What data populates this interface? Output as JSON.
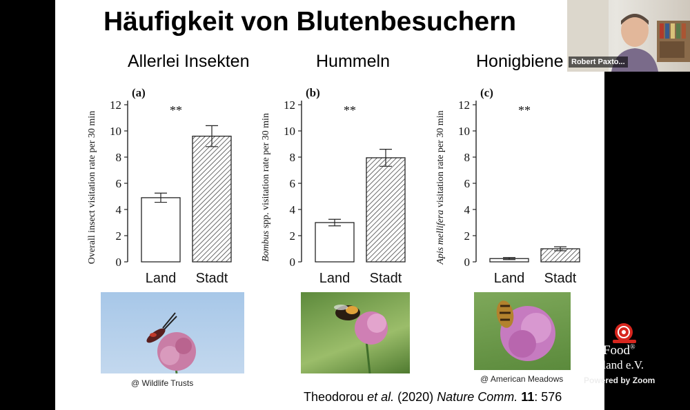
{
  "slide": {
    "title": "Häufigkeit von Blutenbesuchern",
    "subtitles": [
      "Allerlei Insekten",
      "Hummeln",
      "Honigbiene"
    ],
    "photo_captions": [
      "@ Wildlife Trusts",
      "@ American Meadows"
    ],
    "citation": {
      "authors": "Theodorou",
      "etal": "et al.",
      "year": "(2020)",
      "journal": "Nature Comm.",
      "volume": "11",
      "pages": ": 576"
    }
  },
  "webcam": {
    "participant_name": "Robert Paxto..."
  },
  "watermark": {
    "logo_line1": "ow Food",
    "logo_reg": "®",
    "logo_line2": "tschland e.V.",
    "powered_by": "Powered by Zoom"
  },
  "chart_data": [
    {
      "type": "bar",
      "panel": "(a)",
      "ylabel": "Overall insect visitation rate per 30 min",
      "categories": [
        "Land",
        "Stadt"
      ],
      "values": [
        4.9,
        9.6
      ],
      "errors": [
        0.35,
        0.8
      ],
      "ylim": [
        0,
        12
      ],
      "yticks": [
        "0",
        "2",
        "4",
        "6",
        "8",
        "10",
        "12"
      ],
      "significance": "**",
      "fill": [
        "white",
        "hatched"
      ]
    },
    {
      "type": "bar",
      "panel": "(b)",
      "ylabel_italic": "Bombus",
      "ylabel": " spp. visitation rate per 30 min",
      "categories": [
        "Land",
        "Stadt"
      ],
      "values": [
        3.0,
        7.95
      ],
      "errors": [
        0.25,
        0.65
      ],
      "ylim": [
        0,
        12
      ],
      "yticks": [
        "0",
        "2",
        "4",
        "6",
        "8",
        "10",
        "12"
      ],
      "significance": "**",
      "fill": [
        "white",
        "hatched"
      ]
    },
    {
      "type": "bar",
      "panel": "(c)",
      "ylabel_italic": "Apis mellifera",
      "ylabel": " visitation rate per 30 min",
      "categories": [
        "Land",
        "Stadt"
      ],
      "values": [
        0.25,
        1.0
      ],
      "errors": [
        0.08,
        0.15
      ],
      "ylim": [
        0,
        12
      ],
      "yticks": [
        "0",
        "2",
        "4",
        "6",
        "8",
        "10",
        "12"
      ],
      "significance": "**",
      "fill": [
        "white",
        "hatched"
      ]
    }
  ]
}
